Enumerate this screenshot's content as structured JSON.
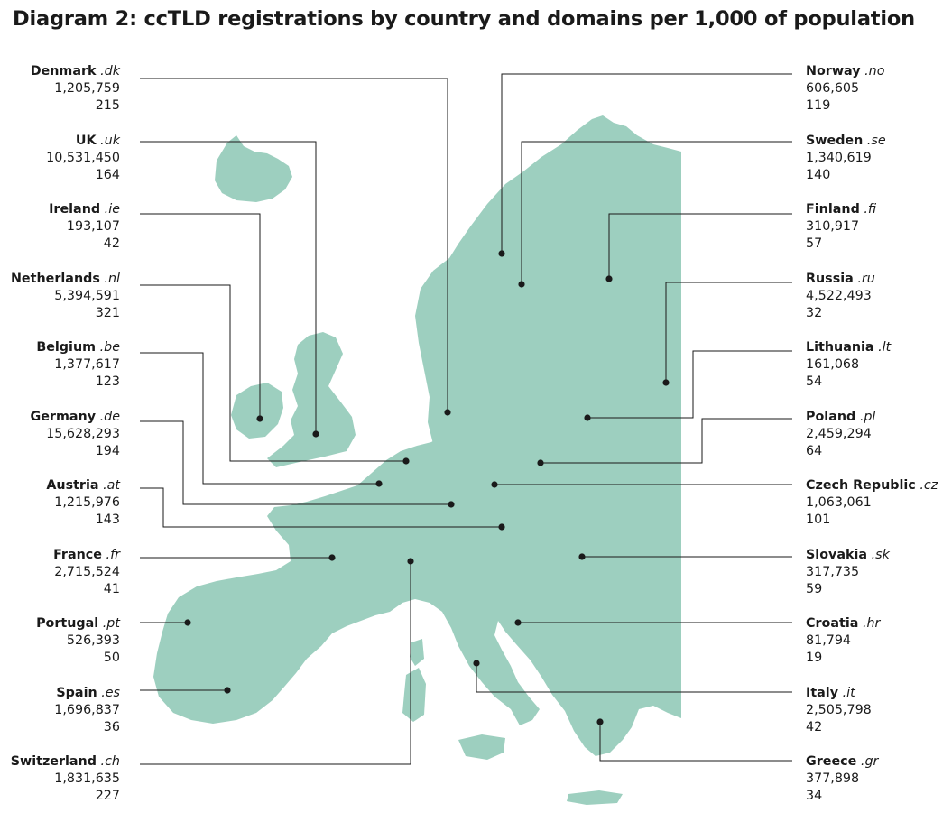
{
  "title": "Diagram 2: ccTLD registrations by country and domains per 1,000 of population",
  "colors": {
    "land": "#9dcfbf",
    "ink": "#1a1a1a"
  },
  "countries": [
    {
      "id": "denmark",
      "name": "Denmark",
      "tld": ".dk",
      "registrations": "1,205,759",
      "per_1000": "215"
    },
    {
      "id": "uk",
      "name": "UK",
      "tld": ".uk",
      "registrations": "10,531,450",
      "per_1000": "164"
    },
    {
      "id": "ireland",
      "name": "Ireland",
      "tld": ".ie",
      "registrations": "193,107",
      "per_1000": "42"
    },
    {
      "id": "netherlands",
      "name": "Netherlands",
      "tld": ".nl",
      "registrations": "5,394,591",
      "per_1000": "321"
    },
    {
      "id": "belgium",
      "name": "Belgium",
      "tld": ".be",
      "registrations": "1,377,617",
      "per_1000": "123"
    },
    {
      "id": "germany",
      "name": "Germany",
      "tld": ".de",
      "registrations": "15,628,293",
      "per_1000": "194"
    },
    {
      "id": "austria",
      "name": "Austria",
      "tld": ".at",
      "registrations": "1,215,976",
      "per_1000": "143"
    },
    {
      "id": "france",
      "name": "France",
      "tld": ".fr",
      "registrations": "2,715,524",
      "per_1000": "41"
    },
    {
      "id": "portugal",
      "name": "Portugal",
      "tld": ".pt",
      "registrations": "526,393",
      "per_1000": "50"
    },
    {
      "id": "spain",
      "name": "Spain",
      "tld": ".es",
      "registrations": "1,696,837",
      "per_1000": "36"
    },
    {
      "id": "switzerland",
      "name": "Switzerland",
      "tld": ".ch",
      "registrations": "1,831,635",
      "per_1000": "227"
    },
    {
      "id": "norway",
      "name": "Norway",
      "tld": ".no",
      "registrations": "606,605",
      "per_1000": "119"
    },
    {
      "id": "sweden",
      "name": "Sweden",
      "tld": ".se",
      "registrations": "1,340,619",
      "per_1000": "140"
    },
    {
      "id": "finland",
      "name": "Finland",
      "tld": ".fi",
      "registrations": "310,917",
      "per_1000": "57"
    },
    {
      "id": "russia",
      "name": "Russia",
      "tld": ".ru",
      "registrations": "4,522,493",
      "per_1000": "32"
    },
    {
      "id": "lithuania",
      "name": "Lithuania",
      "tld": ".lt",
      "registrations": "161,068",
      "per_1000": "54"
    },
    {
      "id": "poland",
      "name": "Poland",
      "tld": ".pl",
      "registrations": "2,459,294",
      "per_1000": "64"
    },
    {
      "id": "czech-republic",
      "name": "Czech Republic",
      "tld": ".cz",
      "registrations": "1,063,061",
      "per_1000": "101"
    },
    {
      "id": "slovakia",
      "name": "Slovakia",
      "tld": ".sk",
      "registrations": "317,735",
      "per_1000": "59"
    },
    {
      "id": "croatia",
      "name": "Croatia",
      "tld": ".hr",
      "registrations": "81,794",
      "per_1000": "19"
    },
    {
      "id": "italy",
      "name": "Italy",
      "tld": ".it",
      "registrations": "2,505,798",
      "per_1000": "42"
    },
    {
      "id": "greece",
      "name": "Greece",
      "tld": ".gr",
      "registrations": "377,898",
      "per_1000": "34"
    }
  ]
}
